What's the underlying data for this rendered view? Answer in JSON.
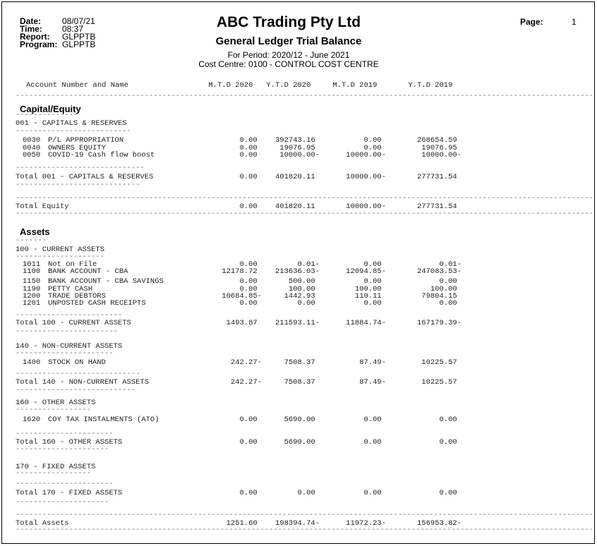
{
  "meta": {
    "labels": {
      "date": "Date:",
      "time": "Time:",
      "report": "Report:",
      "program": "Program:"
    },
    "values": {
      "date": "08/07/21",
      "time": "08:37",
      "report": "GLPPTB",
      "program": "GLPPTB"
    },
    "page_label": "Page:",
    "page_number": "1"
  },
  "title": {
    "company": "ABC Trading Pty Ltd",
    "report_name": "General Ledger Trial Balance",
    "period": "For Period: 2020/12 - June 2021",
    "cost_centre": "Cost Centre: 0100 - CONTROL COST CENTRE"
  },
  "table": {
    "account_col_header": "Account Number and Name",
    "value_col_headers": [
      "M.T.D 2020",
      "Y.T.D 2020",
      "M.T.D 2019",
      "Y.T.D 2019"
    ],
    "sections": [
      {
        "heading": "Capital/Equity",
        "groups": [
          {
            "header": "001 - CAPITALS & RESERVES",
            "accounts": [
              {
                "code": "0030",
                "name": "P/L APPROPRIATION",
                "values": [
                  "0.00",
                  "392743.16",
                  "0.00",
                  "268654.59"
                ]
              },
              {
                "code": "0040",
                "name": "OWNERS EQUITY",
                "values": [
                  "0.00",
                  "19076.95",
                  "0.00",
                  "19076.95"
                ]
              },
              {
                "code": "0050",
                "name": "COVID-19 Cash flow boost",
                "values": [
                  "0.00",
                  "10000.00-",
                  "10000.00-",
                  "10000.00-"
                ]
              }
            ],
            "total": {
              "label": "Total 001 - CAPITALS & RESERVES",
              "values": [
                "0.00",
                "401820.11",
                "10000.00-",
                "277731.54"
              ]
            }
          }
        ],
        "total": {
          "label": "Total Equity",
          "values": [
            "0.00",
            "401820.11",
            "10000.00-",
            "277731.54"
          ]
        }
      },
      {
        "heading": "Assets",
        "groups": [
          {
            "header": "100 - CURRENT ASSETS",
            "accounts": [
              {
                "code": "1011",
                "name": "Not on File",
                "values": [
                  "0.00",
                  "0.01-",
                  "0.00",
                  "0.01-"
                ]
              },
              {
                "code": "1100",
                "name": "BANK ACCOUNT - CBA",
                "values": [
                  "12178.72",
                  "213636.03-",
                  "12094.85-",
                  "247083.53-"
                ]
              },
              {
                "code": "1150",
                "name": "BANK ACCOUNT - CBA SAVINGS",
                "values": [
                  "0.00",
                  "500.00",
                  "0.00",
                  "0.00"
                ]
              },
              {
                "code": "1190",
                "name": "PETTY CASH",
                "values": [
                  "0.00",
                  "100.00",
                  "100.00",
                  "100.00"
                ]
              },
              {
                "code": "1200",
                "name": "TRADE DEBTORS",
                "values": [
                  "10684.85-",
                  "1442.93",
                  "110.11",
                  "79804.15"
                ]
              },
              {
                "code": "1201",
                "name": "UNPOSTED CASH RECEIPTS",
                "values": [
                  "0.00",
                  "0.00",
                  "0.00",
                  "0.00"
                ]
              }
            ],
            "total": {
              "label": "Total 100 - CURRENT ASSETS",
              "values": [
                "1493.87",
                "211593.11-",
                "11884.74-",
                "167179.39-"
              ]
            }
          },
          {
            "header": "140 - NON-CURRENT ASSETS",
            "accounts": [
              {
                "code": "1400",
                "name": "STOCK ON HAND",
                "values": [
                  "242.27-",
                  "7508.37",
                  "87.49-",
                  "10225.57"
                ]
              }
            ],
            "total": {
              "label": "Total 140 - NON-CURRENT ASSETS",
              "values": [
                "242.27-",
                "7508.37",
                "87.49-",
                "10225.57"
              ]
            }
          },
          {
            "header": "160 - OTHER ASSETS",
            "accounts": [
              {
                "code": "1620",
                "name": "COY TAX INSTALMENTS (ATO)",
                "values": [
                  "0.00",
                  "5690.00",
                  "0.00",
                  "0.00"
                ]
              }
            ],
            "total": {
              "label": "Total 160 - OTHER ASSETS",
              "values": [
                "0.00",
                "5690.00",
                "0.00",
                "0.00"
              ]
            }
          },
          {
            "header": "170 - FIXED ASSETS",
            "accounts": [],
            "total": {
              "label": "Total 170 - FIXED ASSETS",
              "values": [
                "0.00",
                "0.00",
                "0.00",
                "0.00"
              ]
            }
          }
        ],
        "total": {
          "label": "Total Assets",
          "values": [
            "1251.60",
            "198394.74-",
            "11972.23-",
            "156953.82-"
          ]
        }
      }
    ]
  },
  "colors": {
    "text": "#222222",
    "heading": "#000000",
    "rule": "#6e6e6e",
    "page_border": "#000000",
    "background": "#ffffff"
  }
}
